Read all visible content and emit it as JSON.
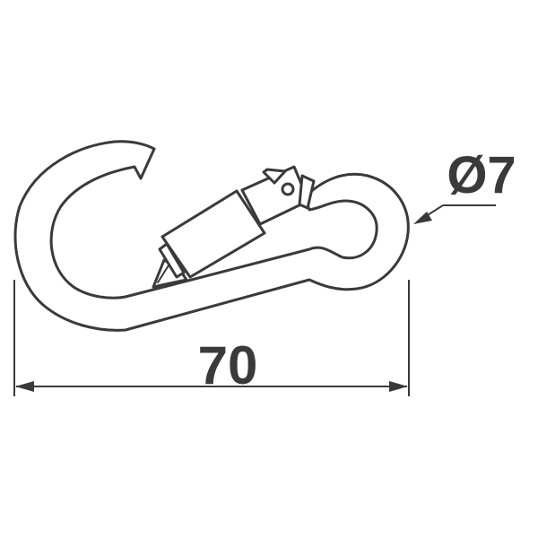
{
  "dimensions": {
    "length_label": "70",
    "diameter_label": "Ø7"
  },
  "colors": {
    "line": "#3a3a3a",
    "background": "#ffffff"
  }
}
